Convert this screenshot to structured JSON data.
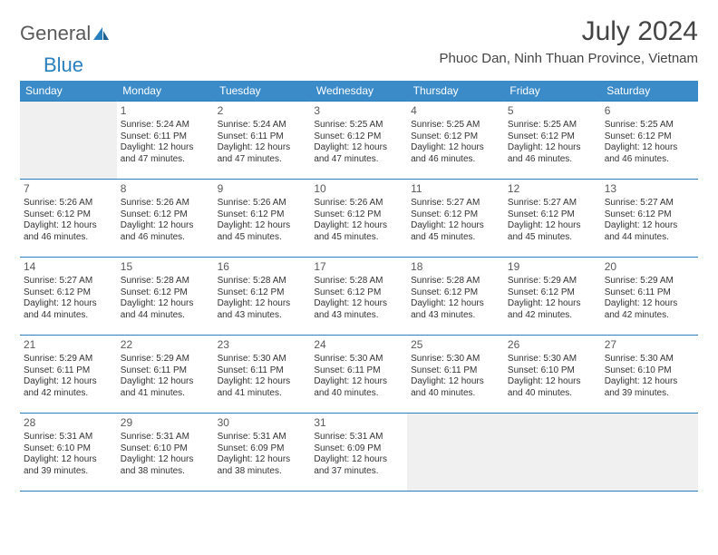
{
  "logo": {
    "text1": "General",
    "text2": "Blue"
  },
  "title": "July 2024",
  "location": "Phuoc Dan, Ninh Thuan Province, Vietnam",
  "colors": {
    "header_bg": "#3b8bc9",
    "header_text": "#ffffff",
    "border": "#2a7fbf",
    "empty_bg": "#f0f0f0",
    "logo_gray": "#5a5a5a",
    "logo_blue": "#2a7fbf",
    "text": "#333333"
  },
  "day_headers": [
    "Sunday",
    "Monday",
    "Tuesday",
    "Wednesday",
    "Thursday",
    "Friday",
    "Saturday"
  ],
  "weeks": [
    [
      {
        "empty": true
      },
      {
        "n": "1",
        "sr": "5:24 AM",
        "ss": "6:11 PM",
        "dl": "12 hours and 47 minutes."
      },
      {
        "n": "2",
        "sr": "5:24 AM",
        "ss": "6:11 PM",
        "dl": "12 hours and 47 minutes."
      },
      {
        "n": "3",
        "sr": "5:25 AM",
        "ss": "6:12 PM",
        "dl": "12 hours and 47 minutes."
      },
      {
        "n": "4",
        "sr": "5:25 AM",
        "ss": "6:12 PM",
        "dl": "12 hours and 46 minutes."
      },
      {
        "n": "5",
        "sr": "5:25 AM",
        "ss": "6:12 PM",
        "dl": "12 hours and 46 minutes."
      },
      {
        "n": "6",
        "sr": "5:25 AM",
        "ss": "6:12 PM",
        "dl": "12 hours and 46 minutes."
      }
    ],
    [
      {
        "n": "7",
        "sr": "5:26 AM",
        "ss": "6:12 PM",
        "dl": "12 hours and 46 minutes."
      },
      {
        "n": "8",
        "sr": "5:26 AM",
        "ss": "6:12 PM",
        "dl": "12 hours and 46 minutes."
      },
      {
        "n": "9",
        "sr": "5:26 AM",
        "ss": "6:12 PM",
        "dl": "12 hours and 45 minutes."
      },
      {
        "n": "10",
        "sr": "5:26 AM",
        "ss": "6:12 PM",
        "dl": "12 hours and 45 minutes."
      },
      {
        "n": "11",
        "sr": "5:27 AM",
        "ss": "6:12 PM",
        "dl": "12 hours and 45 minutes."
      },
      {
        "n": "12",
        "sr": "5:27 AM",
        "ss": "6:12 PM",
        "dl": "12 hours and 45 minutes."
      },
      {
        "n": "13",
        "sr": "5:27 AM",
        "ss": "6:12 PM",
        "dl": "12 hours and 44 minutes."
      }
    ],
    [
      {
        "n": "14",
        "sr": "5:27 AM",
        "ss": "6:12 PM",
        "dl": "12 hours and 44 minutes."
      },
      {
        "n": "15",
        "sr": "5:28 AM",
        "ss": "6:12 PM",
        "dl": "12 hours and 44 minutes."
      },
      {
        "n": "16",
        "sr": "5:28 AM",
        "ss": "6:12 PM",
        "dl": "12 hours and 43 minutes."
      },
      {
        "n": "17",
        "sr": "5:28 AM",
        "ss": "6:12 PM",
        "dl": "12 hours and 43 minutes."
      },
      {
        "n": "18",
        "sr": "5:28 AM",
        "ss": "6:12 PM",
        "dl": "12 hours and 43 minutes."
      },
      {
        "n": "19",
        "sr": "5:29 AM",
        "ss": "6:12 PM",
        "dl": "12 hours and 42 minutes."
      },
      {
        "n": "20",
        "sr": "5:29 AM",
        "ss": "6:11 PM",
        "dl": "12 hours and 42 minutes."
      }
    ],
    [
      {
        "n": "21",
        "sr": "5:29 AM",
        "ss": "6:11 PM",
        "dl": "12 hours and 42 minutes."
      },
      {
        "n": "22",
        "sr": "5:29 AM",
        "ss": "6:11 PM",
        "dl": "12 hours and 41 minutes."
      },
      {
        "n": "23",
        "sr": "5:30 AM",
        "ss": "6:11 PM",
        "dl": "12 hours and 41 minutes."
      },
      {
        "n": "24",
        "sr": "5:30 AM",
        "ss": "6:11 PM",
        "dl": "12 hours and 40 minutes."
      },
      {
        "n": "25",
        "sr": "5:30 AM",
        "ss": "6:11 PM",
        "dl": "12 hours and 40 minutes."
      },
      {
        "n": "26",
        "sr": "5:30 AM",
        "ss": "6:10 PM",
        "dl": "12 hours and 40 minutes."
      },
      {
        "n": "27",
        "sr": "5:30 AM",
        "ss": "6:10 PM",
        "dl": "12 hours and 39 minutes."
      }
    ],
    [
      {
        "n": "28",
        "sr": "5:31 AM",
        "ss": "6:10 PM",
        "dl": "12 hours and 39 minutes."
      },
      {
        "n": "29",
        "sr": "5:31 AM",
        "ss": "6:10 PM",
        "dl": "12 hours and 38 minutes."
      },
      {
        "n": "30",
        "sr": "5:31 AM",
        "ss": "6:09 PM",
        "dl": "12 hours and 38 minutes."
      },
      {
        "n": "31",
        "sr": "5:31 AM",
        "ss": "6:09 PM",
        "dl": "12 hours and 37 minutes."
      },
      {
        "empty": true
      },
      {
        "empty": true
      },
      {
        "empty": true
      }
    ]
  ],
  "labels": {
    "sunrise": "Sunrise:",
    "sunset": "Sunset:",
    "daylight": "Daylight:"
  }
}
